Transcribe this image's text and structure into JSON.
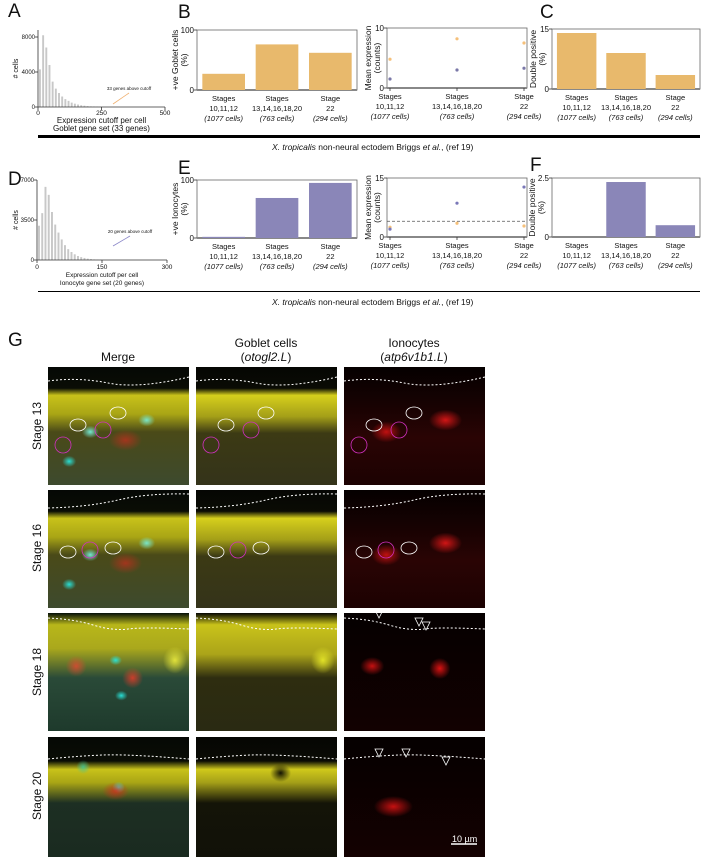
{
  "panel_letters": {
    "A": "A",
    "B": "B",
    "C": "C",
    "D": "D",
    "E": "E",
    "F": "F",
    "G": "G"
  },
  "caption_top": {
    "species": "X. tropicalis",
    "text": " non-neural ectodem Briggs ",
    "etal": "et al.",
    "ref": ", (ref 19)"
  },
  "caption_bottom": {
    "species": "X. tropicalis",
    "text": " non-neural ectodem Briggs ",
    "etal": "et al.",
    "ref": ", (ref 19)"
  },
  "colors": {
    "goblet": "#e8b96c",
    "ionocyte": "#8a86b8",
    "histogram": "#c8c8c8",
    "axis": "#555555"
  },
  "chart_data": [
    {
      "id": "A",
      "type": "bar",
      "subtype": "histogram",
      "x": [
        0,
        12.5,
        25,
        37.5,
        50,
        62.5,
        75,
        87.5,
        100,
        112.5,
        125,
        137.5,
        150,
        162.5,
        175,
        187.5,
        200,
        212.5,
        225,
        237.5
      ],
      "values": [
        4300,
        8200,
        6800,
        4800,
        2900,
        2100,
        1600,
        1200,
        900,
        700,
        500,
        380,
        280,
        200,
        150,
        100,
        70,
        50,
        30,
        20
      ],
      "xlim": [
        0,
        500
      ],
      "ylim": [
        0,
        8800
      ],
      "xticks": [
        "0",
        "250",
        "500"
      ],
      "xtick_values": [
        0,
        250,
        500
      ],
      "yticks": [
        "0",
        "4000",
        "8000"
      ],
      "ytick_values": [
        0,
        4000,
        8000
      ],
      "ylabel": "# cells",
      "xlabel": [
        "Expression cutoff per cell",
        "Goblet gene set (33 genes)"
      ],
      "annotation": "33 genes above cutoff",
      "color": "#c8c8c8",
      "arrow_color": "#f0b070"
    },
    {
      "id": "B1",
      "type": "bar",
      "values": [
        27,
        76,
        62
      ],
      "ylim": [
        0,
        100
      ],
      "yticks": [
        "0",
        "100"
      ],
      "ytick_values": [
        0,
        100
      ],
      "ylabel": [
        "+ve Goblet cells",
        "(%)"
      ],
      "color": "#e8b96c",
      "categories": [
        {
          "stage": "Stages",
          "stages": "10,11,12",
          "cells": "(1077 cells)"
        },
        {
          "stage": "Stages",
          "stages": "13,14,16,18,20",
          "cells": "(763 cells)"
        },
        {
          "stage": "Stage",
          "stages": "22",
          "cells": "(294 cells)"
        }
      ]
    },
    {
      "id": "B2",
      "type": "scatter",
      "ylim": [
        0,
        10
      ],
      "yticks": [
        "0",
        "10"
      ],
      "ytick_values": [
        0,
        10
      ],
      "ylabel": [
        "Mean expression",
        "(counts)"
      ],
      "series": [
        {
          "color": "#f5c07a",
          "values": [
            4.8,
            8.2,
            7.5
          ]
        },
        {
          "color": "#7a78a8",
          "values": [
            1.5,
            3.0,
            3.3
          ]
        }
      ],
      "categories": [
        {
          "stage": "Stages",
          "stages": "10,11,12",
          "cells": "(1077 cells)"
        },
        {
          "stage": "Stages",
          "stages": "13,14,16,18,20",
          "cells": "(763 cells)"
        },
        {
          "stage": "Stage",
          "stages": "22",
          "cells": "(294 cells)"
        }
      ]
    },
    {
      "id": "C",
      "type": "bar",
      "values": [
        14,
        9,
        3.5
      ],
      "ylim": [
        0,
        15
      ],
      "yticks": [
        "0",
        "15"
      ],
      "ytick_values": [
        0,
        15
      ],
      "ylabel": [
        "Double positive",
        "(%)"
      ],
      "color": "#e8b96c",
      "categories": [
        {
          "stage": "Stages",
          "stages": "10,11,12",
          "cells": "(1077 cells)"
        },
        {
          "stage": "Stages",
          "stages": "13,14,16,18,20",
          "cells": "(763 cells)"
        },
        {
          "stage": "Stage",
          "stages": "22",
          "cells": "(294 cells)"
        }
      ]
    },
    {
      "id": "D",
      "type": "bar",
      "subtype": "histogram",
      "x": [
        0,
        7.5,
        15,
        22.5,
        30,
        37.5,
        45,
        52.5,
        60,
        67.5,
        75,
        82.5,
        90,
        97.5,
        105,
        112.5,
        120,
        127.5,
        135,
        142.5
      ],
      "values": [
        3000,
        4100,
        6400,
        5700,
        4200,
        3100,
        2400,
        1800,
        1300,
        950,
        700,
        500,
        350,
        250,
        180,
        120,
        80,
        50,
        30,
        20
      ],
      "xlim": [
        0,
        300
      ],
      "ylim": [
        0,
        7000
      ],
      "xticks": [
        "0",
        "150",
        "300"
      ],
      "xtick_values": [
        0,
        150,
        300
      ],
      "yticks": [
        "0",
        "3500",
        "7000"
      ],
      "ytick_values": [
        0,
        3500,
        7000
      ],
      "ylabel": "# cells",
      "xlabel": [
        "Expression cutoff per cell",
        "Ionocyte gene set (20 genes)"
      ],
      "annotation": "20 genes above cutoff",
      "color": "#c8c8c8",
      "arrow_color": "#8a86c8"
    },
    {
      "id": "E1",
      "type": "bar",
      "values": [
        2,
        69,
        95
      ],
      "ylim": [
        0,
        100
      ],
      "yticks": [
        "0",
        "100"
      ],
      "ytick_values": [
        0,
        100
      ],
      "ylabel": [
        "+ve Ionocytes",
        "(%)"
      ],
      "color": "#8a86b8",
      "categories": [
        {
          "stage": "Stages",
          "stages": "10,11,12",
          "cells": "(1077 cells)"
        },
        {
          "stage": "Stages",
          "stages": "13,14,16,18,20",
          "cells": "(763 cells)"
        },
        {
          "stage": "Stage",
          "stages": "22",
          "cells": "(294 cells)"
        }
      ]
    },
    {
      "id": "E2",
      "type": "scatter",
      "ylim": [
        0,
        15
      ],
      "yticks": [
        "0",
        "15"
      ],
      "ytick_values": [
        0,
        15
      ],
      "ylabel": [
        "Mean expression",
        "(counts)"
      ],
      "reference_line": 4,
      "series": [
        {
          "color": "#f5c07a",
          "values": [
            2.5,
            3.5,
            2.8
          ]
        },
        {
          "color": "#7a78b8",
          "values": [
            2.0,
            8.6,
            12.7
          ]
        }
      ],
      "categories": [
        {
          "stage": "Stages",
          "stages": "10,11,12",
          "cells": "(1077 cells)"
        },
        {
          "stage": "Stages",
          "stages": "13,14,16,18,20",
          "cells": "(763 cells)"
        },
        {
          "stage": "Stage",
          "stages": "22",
          "cells": "(294 cells)"
        }
      ]
    },
    {
      "id": "F",
      "type": "bar",
      "values": [
        0,
        2.33,
        0.5
      ],
      "ylim": [
        0,
        2.5
      ],
      "yticks": [
        "0",
        "2.5"
      ],
      "ytick_values": [
        0,
        2.5
      ],
      "ylabel": [
        "Double positive",
        "(%)"
      ],
      "color": "#8a86b8",
      "categories": [
        {
          "stage": "Stages",
          "stages": "10,11,12",
          "cells": "(1077 cells)"
        },
        {
          "stage": "Stages",
          "stages": "13,14,16,18,20",
          "cells": "(763 cells)"
        },
        {
          "stage": "Stage",
          "stages": "22",
          "cells": "(294 cells)"
        }
      ]
    }
  ],
  "panel_g": {
    "columns": [
      {
        "title": "Merge"
      },
      {
        "title": "Goblet cells",
        "gene": "otogl2.L"
      },
      {
        "title": "Ionocytes",
        "gene": "atp6v1b1.L"
      }
    ],
    "rows": [
      "Stage 13",
      "Stage 16",
      "Stage 18",
      "Stage 20"
    ],
    "scale_bar": "10 µm"
  }
}
